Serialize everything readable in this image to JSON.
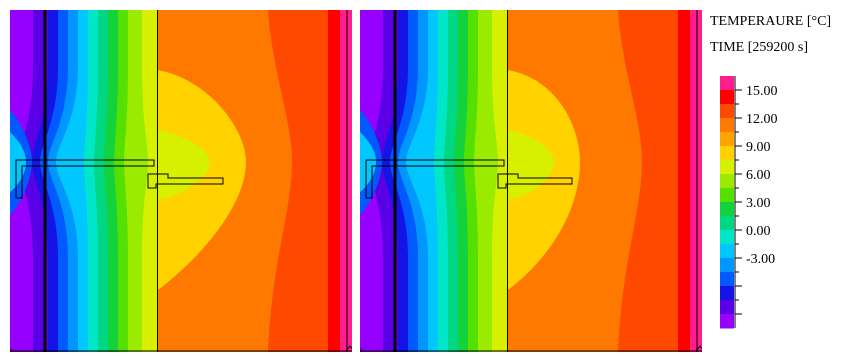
{
  "legend": {
    "title": "TEMPERAURE [°C]",
    "time": "TIME [259200 s]",
    "tick_labels": [
      "15.00",
      "12.00",
      "9.00",
      "6.00",
      "3.00",
      "0.00",
      "-3.00"
    ],
    "colors": [
      "#ff1e8c",
      "#ff0000",
      "#ff4800",
      "#ff7800",
      "#ffa500",
      "#ffd200",
      "#d6f000",
      "#9aeb00",
      "#55e000",
      "#14d23c",
      "#00d782",
      "#00e6c8",
      "#00c8ff",
      "#0096ff",
      "#005aff",
      "#1414e6",
      "#5a00e6",
      "#9600ff"
    ]
  },
  "panels": [
    {
      "name": "left",
      "plate": "long"
    },
    {
      "name": "right",
      "plate": "short"
    }
  ]
}
